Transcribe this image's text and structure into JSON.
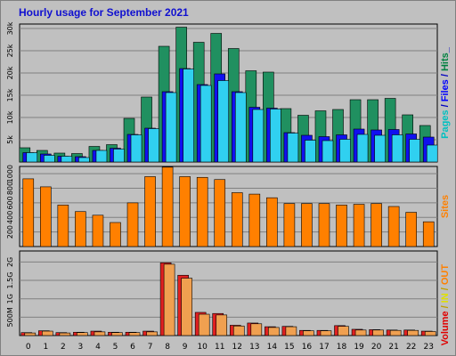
{
  "chart_data": {
    "title": "Hourly usage for September 2021",
    "type": "bar",
    "categories": [
      "0",
      "1",
      "2",
      "3",
      "4",
      "5",
      "6",
      "7",
      "8",
      "9",
      "10",
      "11",
      "12",
      "13",
      "14",
      "15",
      "16",
      "17",
      "18",
      "19",
      "20",
      "21",
      "22",
      "23"
    ],
    "panels": [
      {
        "name": "hits-panel",
        "ylim": [
          0,
          31000
        ],
        "yticks": [
          {
            "value": 5000,
            "label": "5k"
          },
          {
            "value": 10000,
            "label": "10k"
          },
          {
            "value": 15000,
            "label": "15k"
          },
          {
            "value": 20000,
            "label": "20k"
          },
          {
            "value": 25000,
            "label": "25k"
          },
          {
            "value": 30000,
            "label": "30k"
          }
        ],
        "legend": [
          {
            "text": "Pages",
            "color": "#00c0c0"
          },
          {
            "text": " / ",
            "color": "#0000c0"
          },
          {
            "text": "Files",
            "color": "#0000ff"
          },
          {
            "text": " / ",
            "color": "#0000c0"
          },
          {
            "text": "Hits",
            "color": "#008040"
          },
          {
            "text": "_",
            "color": "#0000c0"
          }
        ],
        "series": [
          {
            "name": "Hits",
            "color": "#209060",
            "values": [
              3200,
              2600,
              2000,
              1900,
              3500,
              3900,
              9800,
              14600,
              26000,
              30300,
              26900,
              28900,
              25500,
              20500,
              20200,
              12000,
              10500,
              11500,
              11800,
              14000,
              14000,
              14300,
              10600,
              8200
            ]
          },
          {
            "name": "Files",
            "color": "#1010f0",
            "values": [
              2100,
              1800,
              1300,
              1200,
              2600,
              3100,
              6200,
              7600,
              15800,
              21000,
              17400,
              19800,
              15800,
              12300,
              12100,
              6600,
              6000,
              5700,
              6100,
              7400,
              7200,
              7300,
              6300,
              5600
            ]
          },
          {
            "name": "Pages",
            "color": "#30d0f0",
            "values": [
              2100,
              1500,
              1300,
              1000,
              2600,
              2900,
              6100,
              7500,
              15600,
              20900,
              17200,
              18300,
              15600,
              11800,
              11900,
              6500,
              4900,
              4800,
              5100,
              6200,
              6000,
              6100,
              5100,
              3800
            ]
          }
        ]
      },
      {
        "name": "sites-panel",
        "ylim": [
          0,
          1100
        ],
        "yticks": [
          {
            "value": 200,
            "label": "200"
          },
          {
            "value": 400,
            "label": "400"
          },
          {
            "value": 600,
            "label": "600"
          },
          {
            "value": 800,
            "label": "800"
          },
          {
            "value": 1000,
            "label": "1000"
          }
        ],
        "legend": [
          {
            "text": "Sites",
            "color": "#ff8000"
          }
        ],
        "series": [
          {
            "name": "Sites",
            "color": "#ff8000",
            "values": [
              930,
              820,
              570,
              480,
              430,
              330,
              600,
              960,
              1090,
              960,
              950,
              920,
              740,
              720,
              670,
              590,
              590,
              590,
              570,
              580,
              590,
              550,
              470,
              340
            ]
          }
        ]
      },
      {
        "name": "volume-panel",
        "ylim": [
          0,
          2300000
        ],
        "yticks": [
          {
            "value": 500000,
            "label": "500M"
          },
          {
            "value": 1000000,
            "label": "1G"
          },
          {
            "value": 1500000,
            "label": "1.5G"
          },
          {
            "value": 2000000,
            "label": "2G"
          }
        ],
        "legend": [
          {
            "text": "Volume",
            "color": "#e00000"
          },
          {
            "text": " / ",
            "color": "#c0a000"
          },
          {
            "text": "IN",
            "color": "#e0e000"
          },
          {
            "text": " / ",
            "color": "#c0a000"
          },
          {
            "text": "OUT",
            "color": "#ff8000"
          },
          {
            "text": "Sites",
            "color": "#c0c0c0"
          }
        ],
        "series": [
          {
            "name": "Volume",
            "color": "#e02020",
            "values": [
              80000,
              130000,
              80000,
              90000,
              120000,
              90000,
              90000,
              120000,
              1980000,
              1640000,
              630000,
              600000,
              280000,
              340000,
              240000,
              250000,
              140000,
              140000,
              270000,
              170000,
              160000,
              150000,
              150000,
              120000
            ]
          },
          {
            "name": "OUT",
            "color": "#f0a050",
            "values": [
              70000,
              120000,
              70000,
              80000,
              100000,
              80000,
              80000,
              100000,
              1940000,
              1560000,
              580000,
              560000,
              260000,
              320000,
              220000,
              240000,
              130000,
              130000,
              250000,
              150000,
              150000,
              140000,
              140000,
              110000
            ]
          }
        ]
      }
    ]
  }
}
